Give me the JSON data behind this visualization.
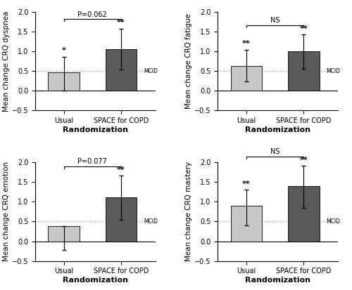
{
  "subplots": [
    {
      "ylabel": "Mean change CRQ dyspnea",
      "usual_bar": 0.46,
      "space_bar": 1.05,
      "usual_err_low": 0.46,
      "usual_err_high": 0.4,
      "space_err_low": 0.52,
      "space_err_high": 0.52,
      "usual_sig": "*",
      "space_sig": "**",
      "bracket_label": "P=0.062",
      "mcid": 0.5
    },
    {
      "ylabel": "Mean change CRQ fatigue",
      "usual_bar": 0.62,
      "space_bar": 1.0,
      "usual_err_low": 0.38,
      "usual_err_high": 0.42,
      "space_err_low": 0.45,
      "space_err_high": 0.42,
      "usual_sig": "**",
      "space_sig": "**",
      "bracket_label": "NS",
      "mcid": 0.5
    },
    {
      "ylabel": "Mean change CRQ emotion",
      "usual_bar": 0.38,
      "space_bar": 1.1,
      "usual_err_low": 0.6,
      "usual_err_high": 0.0,
      "space_err_low": 0.55,
      "space_err_high": 0.55,
      "usual_sig": "",
      "space_sig": "**",
      "bracket_label": "P=0.077",
      "mcid": 0.5
    },
    {
      "ylabel": "Mean change CRQ mastery",
      "usual_bar": 0.9,
      "space_bar": 1.4,
      "usual_err_low": 0.5,
      "usual_err_high": 0.4,
      "space_err_low": 0.55,
      "space_err_high": 0.5,
      "usual_sig": "**",
      "space_sig": "**",
      "bracket_label": "NS",
      "mcid": 0.5
    }
  ],
  "bar_color_usual": "#c8c8c8",
  "bar_color_space": "#5a5a5a",
  "bar_width": 0.55,
  "xlabels": [
    "Usual",
    "SPACE for COPD"
  ],
  "xlabel": "Randomization",
  "ylim": [
    -0.5,
    2.0
  ],
  "yticks": [
    -0.5,
    0.0,
    0.5,
    1.0,
    1.5,
    2.0
  ],
  "mcid_color": "#999999",
  "fontsize_ylabel": 7.5,
  "fontsize_xlabel": 8,
  "fontsize_tick": 7,
  "fontsize_sig": 8,
  "fontsize_bracket": 7,
  "fontsize_mcid": 5.5
}
